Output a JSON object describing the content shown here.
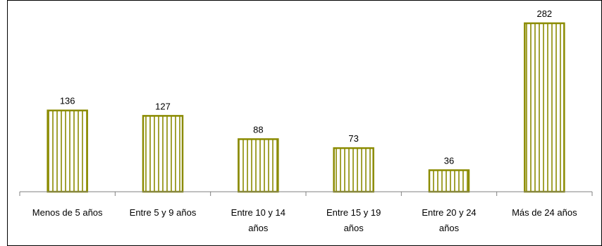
{
  "chart_data": {
    "type": "bar",
    "categories": [
      [
        "Menos de 5 años"
      ],
      [
        "Entre 5 y 9 años"
      ],
      [
        "Entre 10 y 14",
        "años"
      ],
      [
        "Entre 15 y 19",
        "años"
      ],
      [
        "Entre 20 y 24",
        "años"
      ],
      [
        "Más de 24 años"
      ]
    ],
    "values": [
      136,
      127,
      88,
      73,
      36,
      282
    ],
    "ylim": [
      0,
      300
    ],
    "grid": false,
    "legend": "none",
    "title": "",
    "xlabel": "",
    "ylabel": ""
  },
  "colors": {
    "bar_stroke": "#8B8B00",
    "bar_fill": "#ffffff",
    "axis": "#808080",
    "frame": "#000000"
  }
}
